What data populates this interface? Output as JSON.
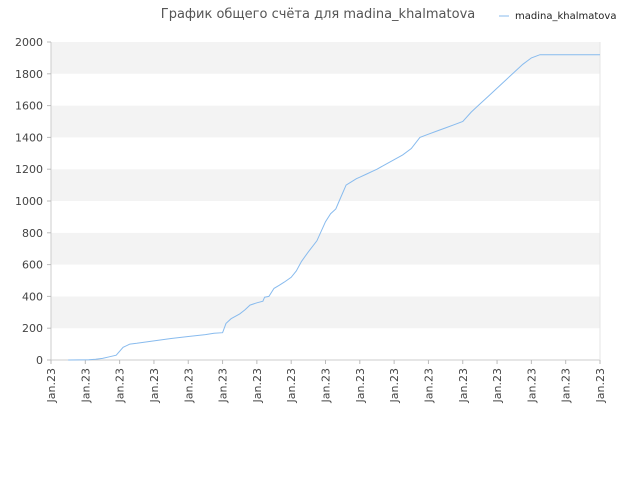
{
  "chart_data": {
    "type": "line",
    "title": "График общего счёта для madina_khalmatova",
    "xlabel": "",
    "ylabel": "",
    "ylim": [
      0,
      2000
    ],
    "yticks": [
      0,
      200,
      400,
      600,
      800,
      1000,
      1200,
      1400,
      1600,
      1800,
      2000
    ],
    "xtick_labels": [
      "Jan.23",
      "Jan.23",
      "Jan.23",
      "Jan.23",
      "Jan.23",
      "Jan.23",
      "Jan.23",
      "Jan.23",
      "Jan.23",
      "Jan.23",
      "Jan.23",
      "Jan.23",
      "Jan.23",
      "Jan.23",
      "Jan.23",
      "Jan.23",
      "Jan.23"
    ],
    "grid": "horizontal bands",
    "legend_position": "top-right",
    "series": [
      {
        "name": "madina_khalmatova",
        "color": "#88bbee",
        "x": [
          1.0,
          2.2,
          2.6,
          3.0,
          3.4,
          3.8,
          4.2,
          4.6,
          5.0,
          6.0,
          7.0,
          8.0,
          9.0,
          9.5,
          10.0,
          10.2,
          10.5,
          11.0,
          11.3,
          11.6,
          12.0,
          12.35,
          12.45,
          12.7,
          13.0,
          13.3,
          13.6,
          14.0,
          14.3,
          14.6,
          15.0,
          15.5,
          16.0,
          16.3,
          16.6,
          16.8,
          17.2,
          17.5,
          17.8,
          18.0,
          18.4,
          18.8,
          19.0,
          19.5,
          20.0,
          20.5,
          21.0,
          21.5,
          22.0,
          22.5,
          23.0,
          23.5,
          24.0,
          24.5,
          25.0,
          25.5,
          26.0,
          26.5,
          27.0,
          27.5,
          28.0,
          28.5,
          29.0,
          29.5,
          30.0,
          30.5,
          31.0,
          31.5,
          32.0
        ],
        "y": [
          0,
          2,
          5,
          10,
          20,
          30,
          80,
          100,
          105,
          120,
          135,
          148,
          160,
          168,
          172,
          230,
          260,
          290,
          315,
          345,
          360,
          370,
          395,
          400,
          450,
          470,
          490,
          520,
          560,
          620,
          680,
          750,
          870,
          920,
          950,
          1000,
          1100,
          1120,
          1140,
          1150,
          1170,
          1190,
          1200,
          1230,
          1260,
          1290,
          1330,
          1400,
          1420,
          1440,
          1460,
          1480,
          1500,
          1560,
          1610,
          1660,
          1710,
          1760,
          1810,
          1860,
          1900,
          1920,
          1920,
          1920,
          1920,
          1920,
          1920,
          1920,
          1920
        ]
      }
    ]
  }
}
